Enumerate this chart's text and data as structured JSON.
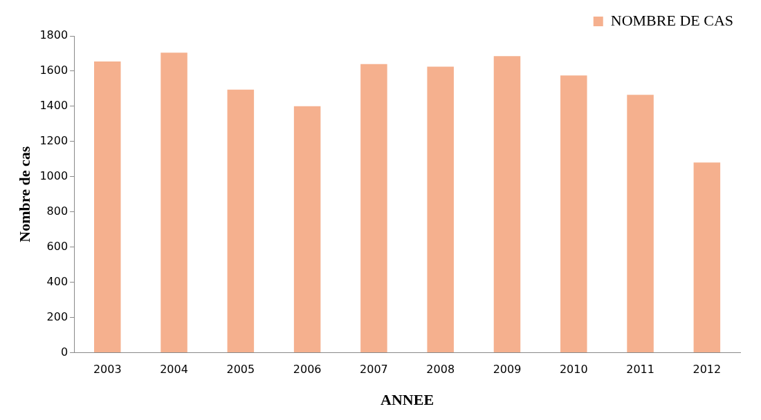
{
  "chart_data": {
    "type": "bar",
    "xlabel": "ANNEE",
    "ylabel": "Nombre de cas",
    "categories": [
      "2003",
      "2004",
      "2005",
      "2006",
      "2007",
      "2008",
      "2009",
      "2010",
      "2011",
      "2012"
    ],
    "series": [
      {
        "name": "NOMBRE DE CAS",
        "color": "#f5b08e",
        "values": [
          1655,
          1705,
          1495,
          1400,
          1640,
          1625,
          1685,
          1575,
          1465,
          1080
        ]
      }
    ],
    "ylim": [
      0,
      1800
    ],
    "yticks": [
      0,
      200,
      400,
      600,
      800,
      1000,
      1200,
      1400,
      1600,
      1800
    ],
    "grid": false,
    "legend": "top right"
  }
}
